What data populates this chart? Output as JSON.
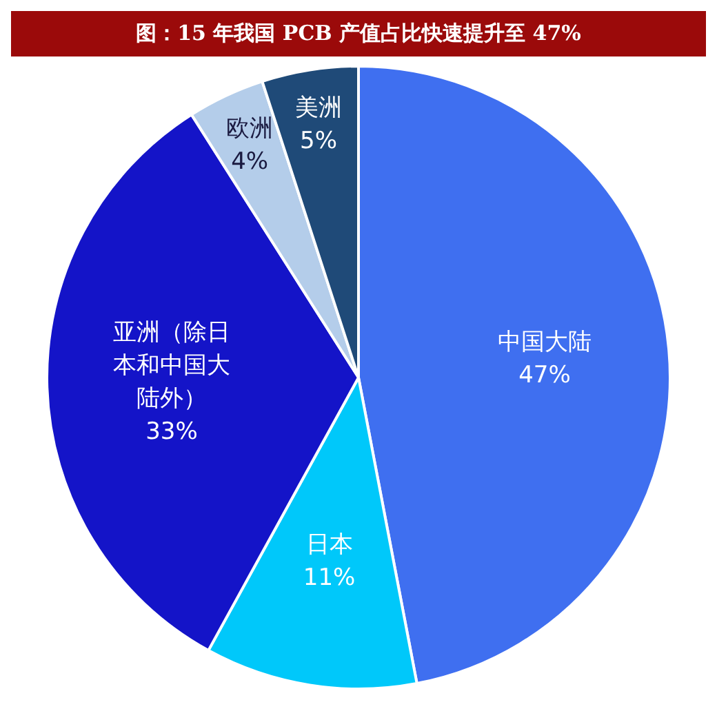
{
  "chart_data": {
    "type": "pie",
    "title": "图：15 年我国 PCB 产值占比快速提升至 47%",
    "categories": [
      "中国大陆",
      "日本",
      "亚洲（除日本和中国大陆外）",
      "欧洲",
      "美洲"
    ],
    "values": [
      47,
      11,
      33,
      4,
      5
    ],
    "colors": [
      "#3f6ff0",
      "#00c8fa",
      "#1414c8",
      "#b4cdea",
      "#1f4a78"
    ],
    "value_labels": [
      "47%",
      "11%",
      "33%",
      "4%",
      "5%"
    ]
  }
}
